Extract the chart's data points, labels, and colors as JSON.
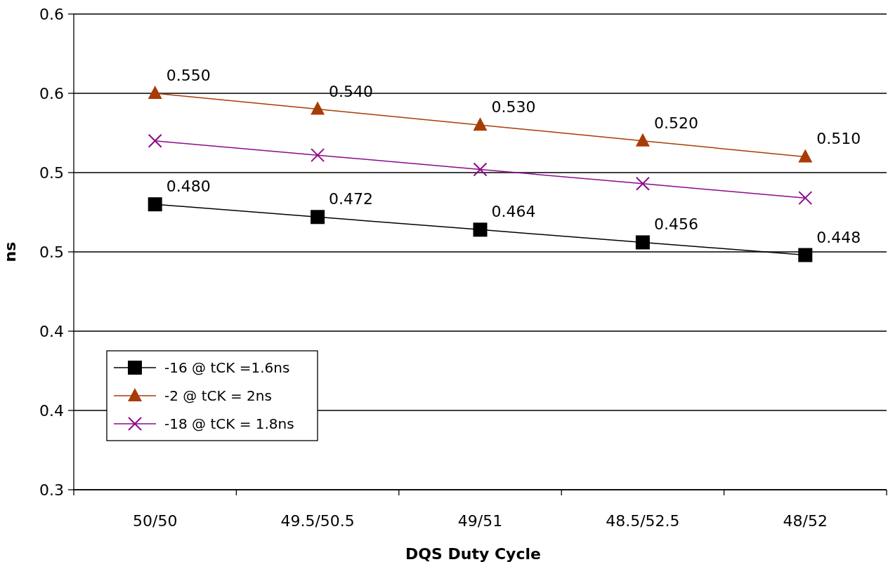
{
  "chart_data": {
    "type": "line",
    "xlabel": "DQS Duty Cycle",
    "ylabel": "ns",
    "categories": [
      "50/50",
      "49.5/50.5",
      "49/51",
      "48.5/52.5",
      "48/52"
    ],
    "ylim": [
      0.3,
      0.6
    ],
    "yticks": [
      0.3,
      {
        "value": 0.35,
        "label": "0.4"
      },
      0.4,
      {
        "value": 0.45,
        "label": "0.5"
      },
      0.5,
      {
        "value": 0.55,
        "label": "0.6"
      },
      0.6
    ],
    "grid": "y",
    "legend": "bottom left",
    "series": [
      {
        "name": "-16 @ tCK =1.6ns",
        "color": "#000000",
        "marker": "square",
        "values": [
          0.48,
          0.472,
          0.464,
          0.456,
          0.448
        ],
        "value_labels": [
          "0.480",
          "0.472",
          "0.464",
          "0.456",
          "0.448"
        ]
      },
      {
        "name": "-2 @ tCK = 2ns",
        "color": "#a83c06",
        "marker": "triangle",
        "values": [
          0.55,
          0.54,
          0.53,
          0.52,
          0.51
        ],
        "value_labels": [
          "0.550",
          "0.540",
          "0.530",
          "0.520",
          "0.510"
        ]
      },
      {
        "name": "-18 @ tCK = 1.8ns",
        "color": "#8b0a8b",
        "marker": "cross",
        "values": [
          0.52,
          0.511,
          0.502,
          0.493,
          0.484
        ]
      }
    ]
  }
}
